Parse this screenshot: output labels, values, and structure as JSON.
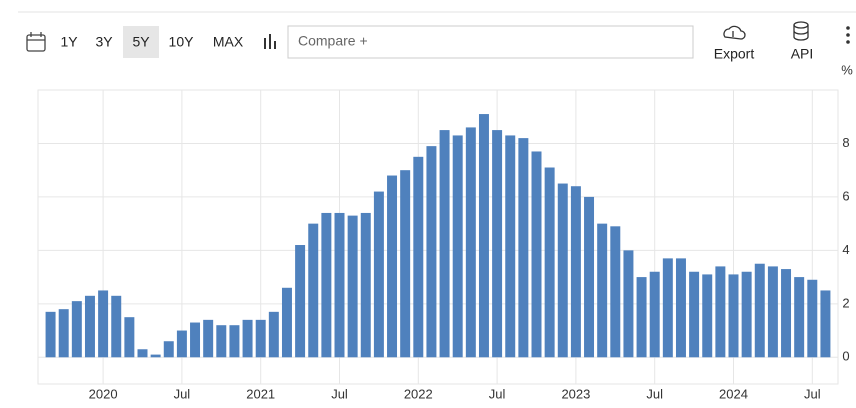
{
  "toolbar": {
    "ranges": [
      "1Y",
      "3Y",
      "5Y",
      "10Y",
      "MAX"
    ],
    "active_range": "5Y",
    "compare_placeholder": "Compare +",
    "actions": [
      "Export",
      "API"
    ]
  },
  "chart_data": {
    "type": "bar",
    "y_unit": "%",
    "color": "#4f81bd",
    "categories": [
      null,
      null,
      null,
      null,
      "2020",
      null,
      null,
      null,
      null,
      null,
      "Jul",
      null,
      null,
      null,
      null,
      null,
      "2021",
      null,
      null,
      null,
      null,
      null,
      "Jul",
      null,
      null,
      null,
      null,
      null,
      "2022",
      null,
      null,
      null,
      null,
      null,
      "Jul",
      null,
      null,
      null,
      null,
      null,
      "2023",
      null,
      null,
      null,
      null,
      null,
      "Jul",
      null,
      null,
      null,
      null,
      null,
      "2024",
      null,
      null,
      null,
      null,
      null,
      "Jul",
      null
    ],
    "values": [
      1.7,
      1.8,
      2.1,
      2.3,
      2.5,
      2.3,
      1.5,
      0.3,
      0.1,
      0.6,
      1.0,
      1.3,
      1.4,
      1.2,
      1.2,
      1.4,
      1.4,
      1.7,
      2.6,
      4.2,
      5.0,
      5.4,
      5.4,
      5.3,
      5.4,
      6.2,
      6.8,
      7.0,
      7.5,
      7.9,
      8.5,
      8.3,
      8.6,
      9.1,
      8.5,
      8.3,
      8.2,
      7.7,
      7.1,
      6.5,
      6.4,
      6.0,
      5.0,
      4.9,
      4.0,
      3.0,
      3.2,
      3.7,
      3.7,
      3.2,
      3.1,
      3.4,
      3.1,
      3.2,
      3.5,
      3.4,
      3.3,
      3.0,
      2.9,
      2.5
    ],
    "ylim": [
      -1,
      10
    ],
    "yticks": [
      0,
      2,
      4,
      6,
      8
    ],
    "grid": true
  }
}
